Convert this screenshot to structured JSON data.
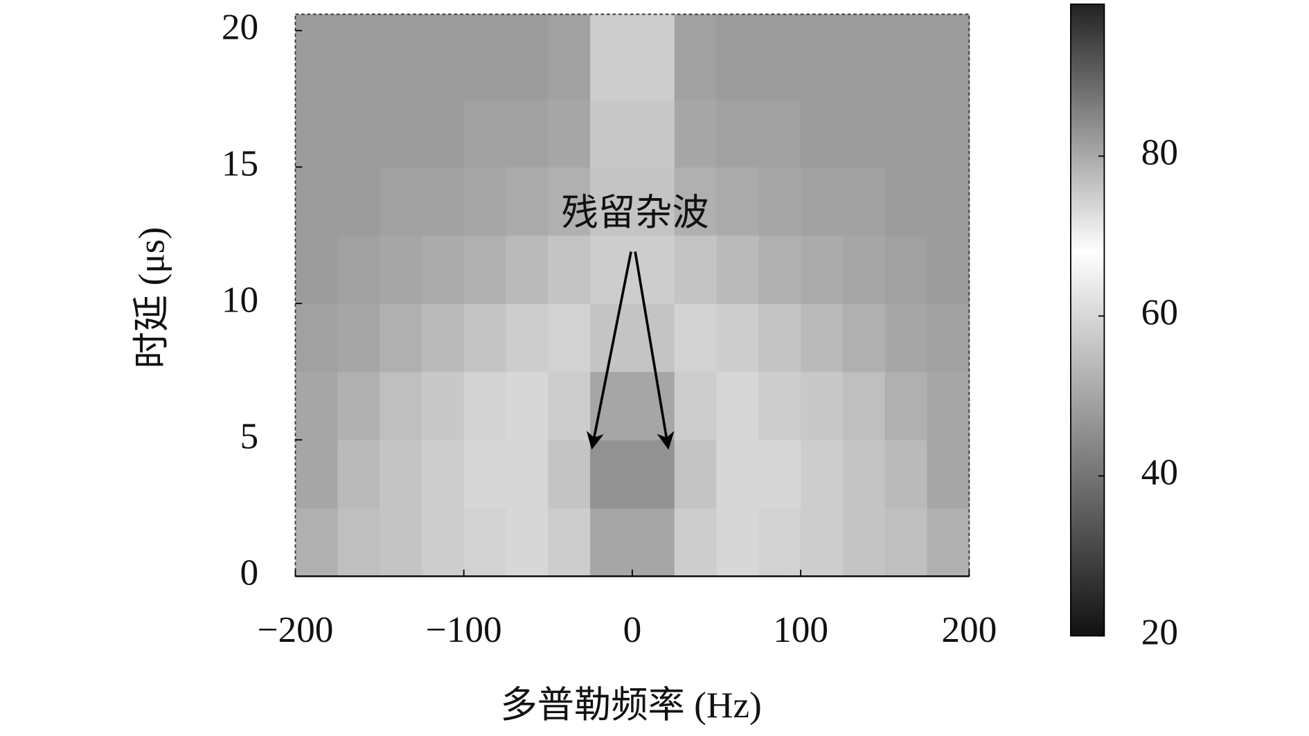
{
  "chart_data": {
    "type": "heatmap",
    "xlabel": "多普勒频率 (Hz)",
    "ylabel": "时延 (μs)",
    "annotation": "残留杂波",
    "xlim": [
      -200,
      200
    ],
    "xticks": [
      {
        "value": -200,
        "label": "−200"
      },
      {
        "value": -100,
        "label": "−100"
      },
      0,
      100,
      200
    ],
    "ylim": [
      0,
      20.6
    ],
    "yticks": [
      0,
      5,
      10,
      15,
      20
    ],
    "xbins": [
      -200,
      -175,
      -150,
      -125,
      -100,
      -75,
      -50,
      -25,
      0,
      25,
      50,
      75,
      100,
      125,
      150,
      175,
      200
    ],
    "ybins": [
      0,
      2.5,
      5,
      7.5,
      10,
      12.5,
      15,
      17.5,
      20.6
    ],
    "z": [
      [
        52,
        55,
        56,
        58,
        59,
        60,
        58,
        50,
        50,
        58,
        60,
        59,
        58,
        56,
        55,
        52
      ],
      [
        50,
        54,
        56,
        58,
        60,
        60,
        56,
        46,
        46,
        56,
        60,
        60,
        58,
        56,
        54,
        50
      ],
      [
        50,
        52,
        55,
        57,
        59,
        60,
        58,
        50,
        50,
        58,
        60,
        58,
        57,
        55,
        52,
        50
      ],
      [
        49,
        50,
        52,
        54,
        56,
        58,
        59,
        56,
        56,
        59,
        58,
        56,
        54,
        52,
        50,
        49
      ],
      [
        48,
        49,
        50,
        51,
        52,
        54,
        56,
        58,
        58,
        56,
        54,
        52,
        51,
        50,
        49,
        48
      ],
      [
        48,
        48,
        49,
        49,
        50,
        51,
        52,
        56,
        56,
        52,
        51,
        50,
        49,
        49,
        48,
        48
      ],
      [
        48,
        48,
        48,
        48,
        49,
        49,
        50,
        57,
        57,
        50,
        49,
        49,
        48,
        48,
        48,
        48
      ],
      [
        48,
        48,
        48,
        48,
        48,
        48,
        49,
        58,
        58,
        49,
        48,
        48,
        48,
        48,
        48,
        48
      ]
    ],
    "colormap": [
      {
        "value": 20,
        "color": "#111111"
      },
      {
        "value": 68,
        "color": "#ffffff"
      },
      {
        "value": 99,
        "color": "#222222"
      }
    ],
    "colorbar": {
      "lim": [
        20,
        99
      ],
      "ticks": [
        20,
        40,
        60,
        80
      ]
    }
  }
}
